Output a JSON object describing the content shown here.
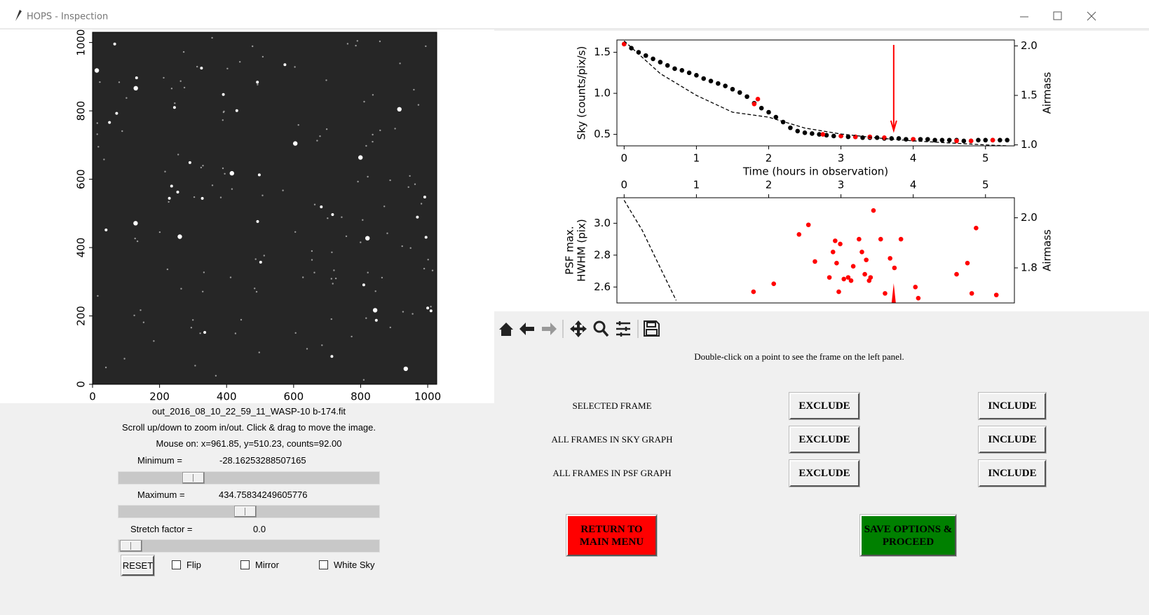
{
  "window": {
    "title": "HOPS - Inspection"
  },
  "chart_data": [
    {
      "type": "image",
      "xlim": [
        0,
        1027
      ],
      "ylim": [
        0,
        1030
      ],
      "xticks": [
        0,
        200,
        400,
        600,
        800,
        1000
      ],
      "yticks": [
        0,
        200,
        400,
        600,
        800,
        1000
      ]
    },
    {
      "type": "scatter",
      "xlabel": "Time (hours in observation)",
      "ylabel": "Sky (counts/pix/s)",
      "y2label": "Airmass",
      "xlim": [
        -0.1,
        5.4
      ],
      "ylim": [
        0.36,
        1.65
      ],
      "y2lim": [
        0.99,
        2.06
      ],
      "xticks": [
        0,
        1,
        2,
        3,
        4,
        5
      ],
      "yticks": [
        0.5,
        {
          "value": 1,
          "label": "1.0"
        },
        1.5
      ],
      "y2ticks": [
        {
          "value": 1,
          "label": "1.0"
        },
        1.5,
        {
          "value": 2,
          "label": "2.0"
        }
      ],
      "xaxis": "bottom",
      "marker_x": 3.73,
      "marker_color": "#ff0000",
      "series": [
        {
          "color": "#000000",
          "x": [
            0,
            0.1,
            0.2,
            0.3,
            0.4,
            0.5,
            0.6,
            0.7,
            0.8,
            0.9,
            1,
            1.1,
            1.2,
            1.3,
            1.4,
            1.5,
            1.6,
            1.7,
            1.8,
            1.9,
            2,
            2.1,
            2.2,
            2.3,
            2.4,
            2.5,
            2.6,
            2.7,
            2.8,
            2.9,
            3,
            3.1,
            3.2,
            3.3,
            3.4,
            3.5,
            3.6,
            3.7,
            3.8,
            3.9,
            4,
            4.1,
            4.2,
            4.3,
            4.4,
            4.5,
            4.6,
            4.7,
            4.8,
            4.9,
            5,
            5.1,
            5.2,
            5.3
          ],
          "values": [
            1.6,
            1.55,
            1.5,
            1.46,
            1.42,
            1.38,
            1.34,
            1.3,
            1.28,
            1.25,
            1.22,
            1.18,
            1.15,
            1.12,
            1.09,
            1.05,
            1.01,
            0.96,
            0.88,
            0.82,
            0.77,
            0.71,
            0.65,
            0.58,
            0.54,
            0.52,
            0.51,
            0.5,
            0.49,
            0.48,
            0.48,
            0.47,
            0.47,
            0.46,
            0.46,
            0.46,
            0.45,
            0.45,
            0.45,
            0.44,
            0.44,
            0.44,
            0.44,
            0.43,
            0.43,
            0.43,
            0.43,
            0.42,
            0.42,
            0.43,
            0.43,
            0.43,
            0.43,
            0.43
          ]
        },
        {
          "color": "#ff0000",
          "x": [
            0,
            1.8,
            1.85,
            2.75,
            3,
            3.2,
            3.4,
            3.6,
            4,
            4.6,
            4.8,
            5.1
          ],
          "values": [
            1.6,
            0.87,
            0.93,
            0.5,
            0.48,
            0.47,
            0.47,
            0.46,
            0.44,
            0.42,
            0.42,
            0.43
          ]
        },
        {
          "color": "#000000",
          "axis": "y2",
          "line_style": "dashed",
          "x": [
            0,
            0.5,
            1,
            1.5,
            2,
            2.5,
            3,
            3.5,
            4,
            4.5,
            5,
            5.3
          ],
          "values": [
            2.05,
            1.72,
            1.5,
            1.33,
            1.28,
            1.17,
            1.11,
            1.07,
            1.04,
            1.02,
            1,
            0.99
          ]
        }
      ]
    },
    {
      "type": "scatter",
      "ylabel": [
        "PSF max.",
        "HWHM (pix)"
      ],
      "y2label": "Airmass",
      "xlim": [
        -0.1,
        5.4
      ],
      "ylim": [
        2.5,
        3.16
      ],
      "y2lim": [
        1.66,
        2.08
      ],
      "xticks": [
        0,
        1,
        2,
        3,
        4,
        5
      ],
      "yticks": [
        2.6,
        2.8,
        {
          "value": 3,
          "label": "3.0"
        }
      ],
      "y2ticks": [
        1.8,
        {
          "value": 2,
          "label": "2.0"
        }
      ],
      "xaxis": "top",
      "marker_x": 3.73,
      "marker_color": "#ff0000",
      "series": [
        {
          "color": "#ff0000",
          "x": [
            1.79,
            2.07,
            2.42,
            2.55,
            2.64,
            2.84,
            2.89,
            2.92,
            2.94,
            2.97,
            2.99,
            3.04,
            3.1,
            3.14,
            3.17,
            3.25,
            3.29,
            3.33,
            3.35,
            3.39,
            3.41,
            3.45,
            3.55,
            3.61,
            3.68,
            3.74,
            3.83,
            4.03,
            4.07,
            4.6,
            4.75,
            4.81,
            4.87,
            5.15
          ],
          "values": [
            2.57,
            2.62,
            2.93,
            2.99,
            2.76,
            2.66,
            2.82,
            2.89,
            2.75,
            2.57,
            2.87,
            2.65,
            2.66,
            2.64,
            2.73,
            2.9,
            2.82,
            2.68,
            2.77,
            2.64,
            2.66,
            3.08,
            2.9,
            2.56,
            2.78,
            2.72,
            2.9,
            2.6,
            2.53,
            2.68,
            2.75,
            2.56,
            2.97,
            2.55
          ]
        },
        {
          "color": "#000000",
          "axis": "y2",
          "line_style": "dashed",
          "x": [
            0,
            0.25,
            0.5,
            0.72
          ],
          "values": [
            2.07,
            1.95,
            1.8,
            1.67
          ]
        }
      ]
    }
  ],
  "image_panel": {
    "filename": "out_2016_08_10_22_59_11_WASP-10 b-174.fit",
    "help": "Scroll up/down to zoom in/out. Click & drag to move the image.",
    "mouse": "Mouse on: x=961.85, y=510.23, counts=92.00",
    "minimum_label": "Minimum =",
    "minimum_value": "-28.16253288507165",
    "maximum_label": "Maximum =",
    "maximum_value": "434.75834249605776",
    "stretch_label": "Stretch factor =",
    "stretch_value": "0.0",
    "reset": "RESET",
    "flip": "Flip",
    "mirror": "Mirror",
    "white_sky": "White Sky"
  },
  "instructions": "Double-click on a point to see the frame on the left panel.",
  "frame_controls": {
    "rows": [
      {
        "label": "SELECTED FRAME",
        "exclude": "EXCLUDE",
        "include": "INCLUDE"
      },
      {
        "label": "ALL FRAMES IN SKY GRAPH",
        "exclude": "EXCLUDE",
        "include": "INCLUDE"
      },
      {
        "label": "ALL FRAMES IN PSF GRAPH",
        "exclude": "EXCLUDE",
        "include": "INCLUDE"
      }
    ],
    "return": "RETURN TO\nMAIN MENU",
    "save": "SAVE OPTIONS &\nPROCEED"
  }
}
